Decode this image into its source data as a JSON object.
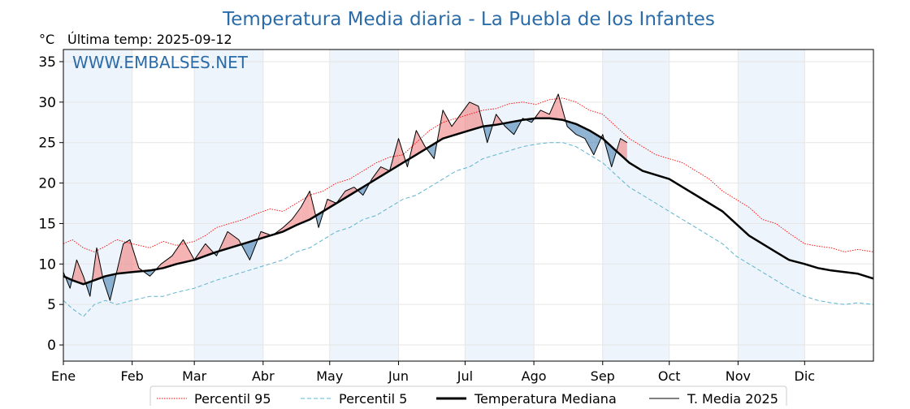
{
  "chart_data": {
    "type": "line",
    "title": "Temperatura Media diaria - La Puebla de los Infantes",
    "unit_label": "°C",
    "last_temp_label": "Última temp: 2025-09-12",
    "watermark": "WWW.EMBALSES.NET",
    "xlabel": "",
    "ylabel": "",
    "ylim": [
      -2,
      36.5
    ],
    "yticks": [
      0,
      5,
      10,
      15,
      20,
      25,
      30,
      35
    ],
    "xlim": [
      1,
      366
    ],
    "months": [
      {
        "label": "Ene",
        "day": 1
      },
      {
        "label": "Feb",
        "day": 32
      },
      {
        "label": "Mar",
        "day": 60
      },
      {
        "label": "Abr",
        "day": 91
      },
      {
        "label": "May",
        "day": 121
      },
      {
        "label": "Jun",
        "day": 152
      },
      {
        "label": "Jul",
        "day": 182
      },
      {
        "label": "Ago",
        "day": 213
      },
      {
        "label": "Sep",
        "day": 244
      },
      {
        "label": "Oct",
        "day": 274
      },
      {
        "label": "Nov",
        "day": 305
      },
      {
        "label": "Dic",
        "day": 335
      }
    ],
    "grid": true,
    "legend_position": "bottom",
    "colors": {
      "p95": "#ff0000",
      "p5": "#5fb4cf",
      "median": "#000000",
      "current": "#000000",
      "above_fill": "#f08080",
      "below_fill": "#4682b4",
      "title": "#2b6ca8",
      "band": "#eef4fb"
    },
    "series": [
      {
        "name": "Percentil 95",
        "style": "dotted",
        "x": [
          1,
          5,
          10,
          15,
          20,
          25,
          32,
          40,
          46,
          52,
          60,
          65,
          70,
          76,
          82,
          88,
          94,
          100,
          106,
          112,
          118,
          124,
          130,
          136,
          142,
          148,
          154,
          160,
          166,
          172,
          178,
          184,
          190,
          196,
          202,
          208,
          214,
          220,
          226,
          232,
          238,
          244,
          250,
          256,
          262,
          268,
          274,
          280,
          286,
          292,
          298,
          304,
          310,
          316,
          322,
          328,
          335,
          341,
          347,
          353,
          359,
          366
        ],
        "values": [
          12.5,
          13.0,
          12.0,
          11.5,
          12.2,
          13.0,
          12.5,
          12.0,
          12.8,
          12.3,
          12.8,
          13.5,
          14.5,
          15.0,
          15.5,
          16.2,
          16.8,
          16.5,
          17.5,
          18.5,
          19.0,
          20.0,
          20.5,
          21.5,
          22.5,
          23.2,
          23.5,
          25.0,
          26.5,
          27.5,
          28.0,
          28.5,
          29.0,
          29.2,
          29.8,
          30.0,
          29.7,
          30.3,
          30.5,
          30.0,
          29.0,
          28.5,
          27.0,
          25.5,
          24.5,
          23.5,
          23.0,
          22.5,
          21.5,
          20.5,
          19.0,
          18.0,
          17.0,
          15.5,
          15.0,
          13.8,
          12.5,
          12.2,
          12.0,
          11.5,
          11.8,
          11.5
        ]
      },
      {
        "name": "Percentil 5",
        "style": "dashed",
        "x": [
          1,
          5,
          10,
          15,
          20,
          25,
          32,
          40,
          46,
          52,
          60,
          65,
          70,
          76,
          82,
          88,
          94,
          100,
          106,
          112,
          118,
          124,
          130,
          136,
          142,
          148,
          154,
          160,
          166,
          172,
          178,
          184,
          190,
          196,
          202,
          208,
          214,
          220,
          226,
          232,
          238,
          244,
          250,
          256,
          262,
          268,
          274,
          280,
          286,
          292,
          298,
          304,
          310,
          316,
          322,
          328,
          335,
          341,
          347,
          353,
          359,
          366
        ],
        "values": [
          5.5,
          4.5,
          3.5,
          5.0,
          5.5,
          5.0,
          5.5,
          6.0,
          6.0,
          6.5,
          7.0,
          7.5,
          8.0,
          8.5,
          9.0,
          9.5,
          10.0,
          10.5,
          11.5,
          12.0,
          13.0,
          14.0,
          14.5,
          15.5,
          16.0,
          17.0,
          18.0,
          18.5,
          19.5,
          20.5,
          21.5,
          22.0,
          23.0,
          23.5,
          24.0,
          24.5,
          24.8,
          25.0,
          25.0,
          24.5,
          23.5,
          22.5,
          21.0,
          19.5,
          18.5,
          17.5,
          16.5,
          15.5,
          14.5,
          13.5,
          12.5,
          11.0,
          10.0,
          9.0,
          8.0,
          7.0,
          6.0,
          5.5,
          5.2,
          5.0,
          5.2,
          5.0
        ]
      },
      {
        "name": "Temperatura Mediana",
        "style": "solid-thick",
        "x": [
          1,
          5,
          10,
          15,
          20,
          25,
          32,
          40,
          46,
          52,
          60,
          65,
          70,
          76,
          82,
          88,
          94,
          100,
          106,
          112,
          118,
          124,
          130,
          136,
          142,
          148,
          154,
          160,
          166,
          172,
          178,
          184,
          190,
          196,
          202,
          208,
          214,
          220,
          226,
          232,
          238,
          244,
          250,
          256,
          262,
          268,
          274,
          280,
          286,
          292,
          298,
          304,
          310,
          316,
          322,
          328,
          335,
          341,
          347,
          353,
          359,
          366
        ],
        "values": [
          8.5,
          8.0,
          7.5,
          8.0,
          8.5,
          8.8,
          9.0,
          9.2,
          9.5,
          10.0,
          10.5,
          11.0,
          11.5,
          12.0,
          12.5,
          13.0,
          13.5,
          14.0,
          14.8,
          15.5,
          16.5,
          17.5,
          18.5,
          19.5,
          20.5,
          21.5,
          22.5,
          23.5,
          24.5,
          25.5,
          26.0,
          26.5,
          27.0,
          27.2,
          27.5,
          27.8,
          28.0,
          28.0,
          27.8,
          27.3,
          26.5,
          25.5,
          24.0,
          22.5,
          21.5,
          21.0,
          20.5,
          19.5,
          18.5,
          17.5,
          16.5,
          15.0,
          13.5,
          12.5,
          11.5,
          10.5,
          10.0,
          9.5,
          9.2,
          9.0,
          8.8,
          8.2
        ]
      },
      {
        "name": "T. Media 2025",
        "style": "solid-thin",
        "x": [
          1,
          4,
          7,
          10,
          13,
          16,
          19,
          22,
          25,
          28,
          31,
          35,
          40,
          45,
          50,
          55,
          60,
          65,
          70,
          75,
          80,
          85,
          90,
          95,
          100,
          104,
          108,
          112,
          116,
          120,
          124,
          128,
          132,
          136,
          140,
          144,
          148,
          152,
          156,
          160,
          164,
          168,
          172,
          176,
          180,
          184,
          188,
          192,
          196,
          200,
          204,
          208,
          212,
          216,
          220,
          224,
          228,
          232,
          236,
          240,
          244,
          248,
          252,
          255
        ],
        "values": [
          9.0,
          7.0,
          10.5,
          8.5,
          6.0,
          12.0,
          8.0,
          5.5,
          9.0,
          12.5,
          13.0,
          9.5,
          8.5,
          10.0,
          11.0,
          13.0,
          10.5,
          12.5,
          11.0,
          14.0,
          13.0,
          10.5,
          14.0,
          13.5,
          14.5,
          15.5,
          17.0,
          19.0,
          14.5,
          18.0,
          17.5,
          19.0,
          19.5,
          18.5,
          20.5,
          22.0,
          21.5,
          25.5,
          22.0,
          26.5,
          24.5,
          23.0,
          29.0,
          27.0,
          28.5,
          30.0,
          29.5,
          25.0,
          28.5,
          27.0,
          26.0,
          28.0,
          27.5,
          29.0,
          28.5,
          31.0,
          27.0,
          26.0,
          25.5,
          23.5,
          26.0,
          22.0,
          25.5,
          25.0
        ]
      }
    ]
  }
}
